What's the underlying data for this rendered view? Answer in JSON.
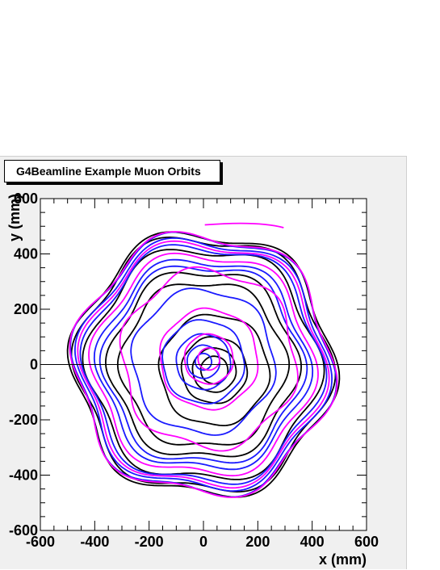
{
  "chart_data": {
    "type": "line",
    "title": "G4Beamline Example Muon Orbits",
    "xlabel": "x (mm)",
    "ylabel": "y (mm)",
    "xlim": [
      -600,
      600
    ],
    "ylim": [
      -600,
      600
    ],
    "x_ticks": [
      "-600",
      "-400",
      "-200",
      "0",
      "200",
      "400",
      "600"
    ],
    "y_ticks": [
      "-600",
      "-400",
      "-200",
      "0",
      "200",
      "400",
      "600"
    ],
    "grid": false,
    "legend": "none",
    "series_colors": [
      "#000000",
      "#1a1aff",
      "#ff00ff"
    ],
    "orbit_families": [
      {
        "color": "#000000",
        "center": [
          0,
          0
        ],
        "radii": [
          300,
          340,
          420,
          460,
          475
        ]
      },
      {
        "color": "#1a1aff",
        "center": [
          0,
          0
        ],
        "radii": [
          360,
          380,
          430,
          450,
          468
        ]
      },
      {
        "color": "#ff00ff",
        "center": [
          0,
          0
        ],
        "radii": [
          400,
          440,
          470
        ]
      },
      {
        "color": "#000000",
        "center": [
          40,
          -20
        ],
        "radii": [
          200,
          120,
          80,
          50
        ]
      },
      {
        "color": "#1a1aff",
        "center": [
          0,
          10
        ],
        "radii": [
          260,
          150,
          100,
          60,
          30
        ]
      },
      {
        "color": "#ff00ff",
        "center": [
          20,
          20
        ],
        "radii": [
          320,
          180,
          90,
          40
        ]
      }
    ],
    "hexagonal_modulation": 0.06,
    "spiral_out_start": [
      5,
      505
    ],
    "spiral_out_end": [
      295,
      495
    ]
  }
}
